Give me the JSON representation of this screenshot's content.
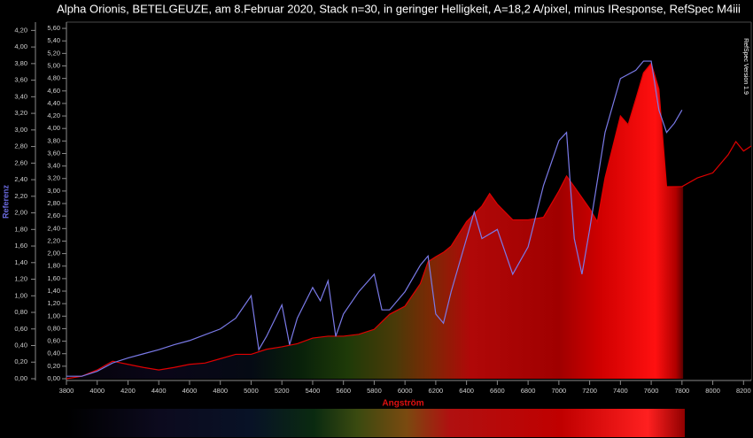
{
  "chart_data": {
    "type": "line",
    "title": "Alpha Orionis, BETELGEUZE, am 8.Februar 2020, Stack n=30, in geringer Helligkeit, A=18,2 A/pixel, minus IResponse, RefSpec M4iii",
    "annotation": "RefSpec Version 1.9",
    "x_label": "Angström",
    "y_label": "Referenz",
    "xlim": [
      3800,
      8250
    ],
    "xticks": [
      3800,
      4000,
      4200,
      4400,
      4600,
      4800,
      5000,
      5200,
      5400,
      5600,
      5800,
      6000,
      6200,
      6400,
      6600,
      6800,
      7000,
      7200,
      7400,
      7600,
      7800,
      8000,
      8200
    ],
    "ylim": [
      0,
      4.3
    ],
    "yticks": [
      {
        "value": 0,
        "label": "0,00"
      },
      {
        "value": 0.2,
        "label": "0,20"
      },
      {
        "value": 0.4,
        "label": "0,40"
      },
      {
        "value": 0.6,
        "label": "0,60"
      },
      {
        "value": 0.8,
        "label": "0,80"
      },
      {
        "value": 1.0,
        "label": "1,00"
      },
      {
        "value": 1.2,
        "label": "1,20"
      },
      {
        "value": 1.4,
        "label": "1,40"
      },
      {
        "value": 1.6,
        "label": "1,60"
      },
      {
        "value": 1.8,
        "label": "1,80"
      },
      {
        "value": 2.0,
        "label": "2,00"
      },
      {
        "value": 2.2,
        "label": "2,20"
      },
      {
        "value": 2.4,
        "label": "2,40"
      },
      {
        "value": 2.6,
        "label": "2,60"
      },
      {
        "value": 2.8,
        "label": "2,80"
      },
      {
        "value": 3.0,
        "label": "3,00"
      },
      {
        "value": 3.2,
        "label": "3,20"
      },
      {
        "value": 3.4,
        "label": "3,40"
      },
      {
        "value": 3.6,
        "label": "3,60"
      },
      {
        "value": 3.8,
        "label": "3,80"
      },
      {
        "value": 4.0,
        "label": "4,00"
      },
      {
        "value": 4.2,
        "label": "4,20"
      }
    ],
    "y2lim": [
      0,
      5.7
    ],
    "y2ticks": [
      {
        "value": 0,
        "label": "0,00"
      },
      {
        "value": 0.2,
        "label": "0,20"
      },
      {
        "value": 0.4,
        "label": "0,40"
      },
      {
        "value": 0.6,
        "label": "0,60"
      },
      {
        "value": 0.8,
        "label": "0,80"
      },
      {
        "value": 1.0,
        "label": "1,00"
      },
      {
        "value": 1.2,
        "label": "1,20"
      },
      {
        "value": 1.4,
        "label": "1,40"
      },
      {
        "value": 1.6,
        "label": "1,60"
      },
      {
        "value": 1.8,
        "label": "1,80"
      },
      {
        "value": 2.0,
        "label": "2,00"
      },
      {
        "value": 2.2,
        "label": "2,20"
      },
      {
        "value": 2.4,
        "label": "2,40"
      },
      {
        "value": 2.6,
        "label": "2,60"
      },
      {
        "value": 2.8,
        "label": "2,80"
      },
      {
        "value": 3.0,
        "label": "3,00"
      },
      {
        "value": 3.2,
        "label": "3,20"
      },
      {
        "value": 3.4,
        "label": "3,40"
      },
      {
        "value": 3.6,
        "label": "3,60"
      },
      {
        "value": 3.8,
        "label": "3,80"
      },
      {
        "value": 4.0,
        "label": "4,00"
      },
      {
        "value": 4.2,
        "label": "4,20"
      },
      {
        "value": 4.4,
        "label": "4,40"
      },
      {
        "value": 4.6,
        "label": "4,60"
      },
      {
        "value": 4.8,
        "label": "4,80"
      },
      {
        "value": 5.0,
        "label": "5,00"
      },
      {
        "value": 5.2,
        "label": "5,20"
      },
      {
        "value": 5.4,
        "label": "5,40"
      },
      {
        "value": 5.6,
        "label": "5,60"
      }
    ],
    "series": [
      {
        "color": "#e00000",
        "axis": "y2",
        "fill": true,
        "x": [
          3800,
          3900,
          4000,
          4100,
          4200,
          4300,
          4400,
          4500,
          4600,
          4700,
          4800,
          4900,
          5000,
          5100,
          5200,
          5300,
          5400,
          5500,
          5600,
          5700,
          5800,
          5900,
          6000,
          6100,
          6150,
          6200,
          6250,
          6300,
          6400,
          6500,
          6550,
          6600,
          6700,
          6800,
          6900,
          7000,
          7050,
          7100,
          7200,
          7250,
          7300,
          7400,
          7450,
          7500,
          7550,
          7600,
          7650,
          7700,
          7750,
          7800,
          7900,
          8000,
          8100,
          8150,
          8200,
          8250
        ],
        "values": [
          0,
          0.04,
          0.14,
          0.28,
          0.23,
          0.18,
          0.14,
          0.18,
          0.23,
          0.25,
          0.32,
          0.39,
          0.39,
          0.47,
          0.51,
          0.56,
          0.65,
          0.68,
          0.68,
          0.71,
          0.79,
          1.03,
          1.16,
          1.52,
          1.87,
          1.95,
          2.02,
          2.12,
          2.51,
          2.76,
          2.96,
          2.79,
          2.54,
          2.54,
          2.58,
          3.0,
          3.24,
          3.07,
          2.72,
          2.51,
          3.21,
          4.2,
          4.06,
          4.47,
          4.89,
          5.04,
          4.63,
          3.07,
          3.07,
          3.07,
          3.21,
          3.29,
          3.58,
          3.79,
          3.64,
          3.72
        ]
      },
      {
        "color": "#7a7ae8",
        "axis": "y",
        "x": [
          3800,
          3900,
          4000,
          4100,
          4200,
          4300,
          4400,
          4500,
          4600,
          4700,
          4800,
          4900,
          5000,
          5050,
          5100,
          5200,
          5250,
          5300,
          5400,
          5450,
          5500,
          5550,
          5600,
          5700,
          5800,
          5850,
          5900,
          6000,
          6100,
          6150,
          6200,
          6250,
          6300,
          6400,
          6450,
          6500,
          6600,
          6700,
          6800,
          6900,
          7000,
          7050,
          7100,
          7150,
          7200,
          7300,
          7400,
          7500,
          7550,
          7600,
          7650,
          7700,
          7750,
          7800
        ],
        "values": [
          0.03,
          0.03,
          0.09,
          0.19,
          0.25,
          0.3,
          0.35,
          0.41,
          0.46,
          0.53,
          0.6,
          0.73,
          1.0,
          0.35,
          0.51,
          0.89,
          0.41,
          0.73,
          1.1,
          0.94,
          1.18,
          0.51,
          0.78,
          1.05,
          1.26,
          0.83,
          0.83,
          1.05,
          1.37,
          1.48,
          0.78,
          0.67,
          1.05,
          1.69,
          2.01,
          1.69,
          1.8,
          1.26,
          1.59,
          2.33,
          2.87,
          2.97,
          1.69,
          1.26,
          1.8,
          2.97,
          3.62,
          3.72,
          3.83,
          3.83,
          3.24,
          2.97,
          3.08,
          3.24
        ]
      }
    ]
  }
}
